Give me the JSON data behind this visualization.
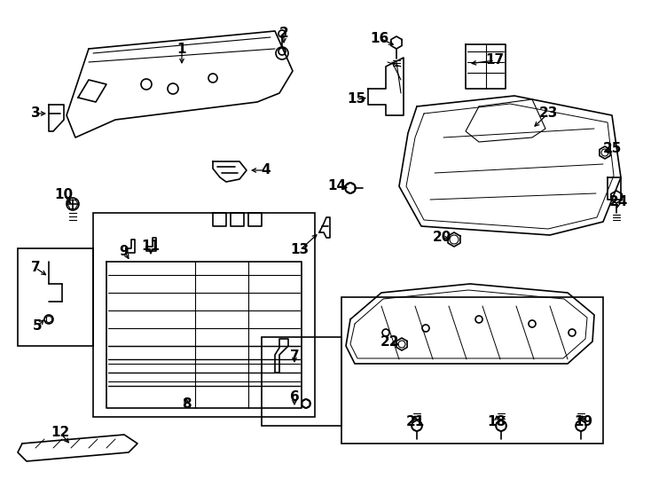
{
  "bg_color": "#ffffff",
  "line_color": "#000000",
  "label_fontsize": 11,
  "labels_info": [
    [
      "1",
      205,
      55,
      205,
      75
    ],
    [
      "2",
      320,
      38,
      320,
      52
    ],
    [
      "3",
      40,
      128,
      55,
      128
    ],
    [
      "4",
      300,
      192,
      280,
      192
    ],
    [
      "10",
      72,
      220,
      82,
      232
    ],
    [
      "9",
      140,
      283,
      147,
      295
    ],
    [
      "11",
      170,
      278,
      170,
      290
    ],
    [
      "8",
      210,
      456,
      210,
      445
    ],
    [
      "5",
      42,
      368,
      52,
      358
    ],
    [
      "7",
      40,
      302,
      55,
      312
    ],
    [
      "12",
      68,
      488,
      80,
      502
    ],
    [
      "13",
      338,
      282,
      360,
      262
    ],
    [
      "14",
      380,
      210,
      395,
      212
    ],
    [
      "15",
      402,
      112,
      416,
      110
    ],
    [
      "16",
      428,
      43,
      447,
      52
    ],
    [
      "17",
      558,
      68,
      528,
      72
    ],
    [
      "20",
      498,
      268,
      510,
      270
    ],
    [
      "23",
      618,
      128,
      600,
      145
    ],
    [
      "24",
      697,
      228,
      695,
      238
    ],
    [
      "25",
      690,
      168,
      682,
      175
    ],
    [
      "6",
      332,
      448,
      332,
      460
    ],
    [
      "7",
      332,
      402,
      332,
      412
    ],
    [
      "22",
      440,
      385,
      453,
      390
    ],
    [
      "18",
      560,
      476,
      560,
      465
    ],
    [
      "19",
      658,
      476,
      655,
      465
    ],
    [
      "21",
      468,
      476,
      468,
      465
    ]
  ]
}
